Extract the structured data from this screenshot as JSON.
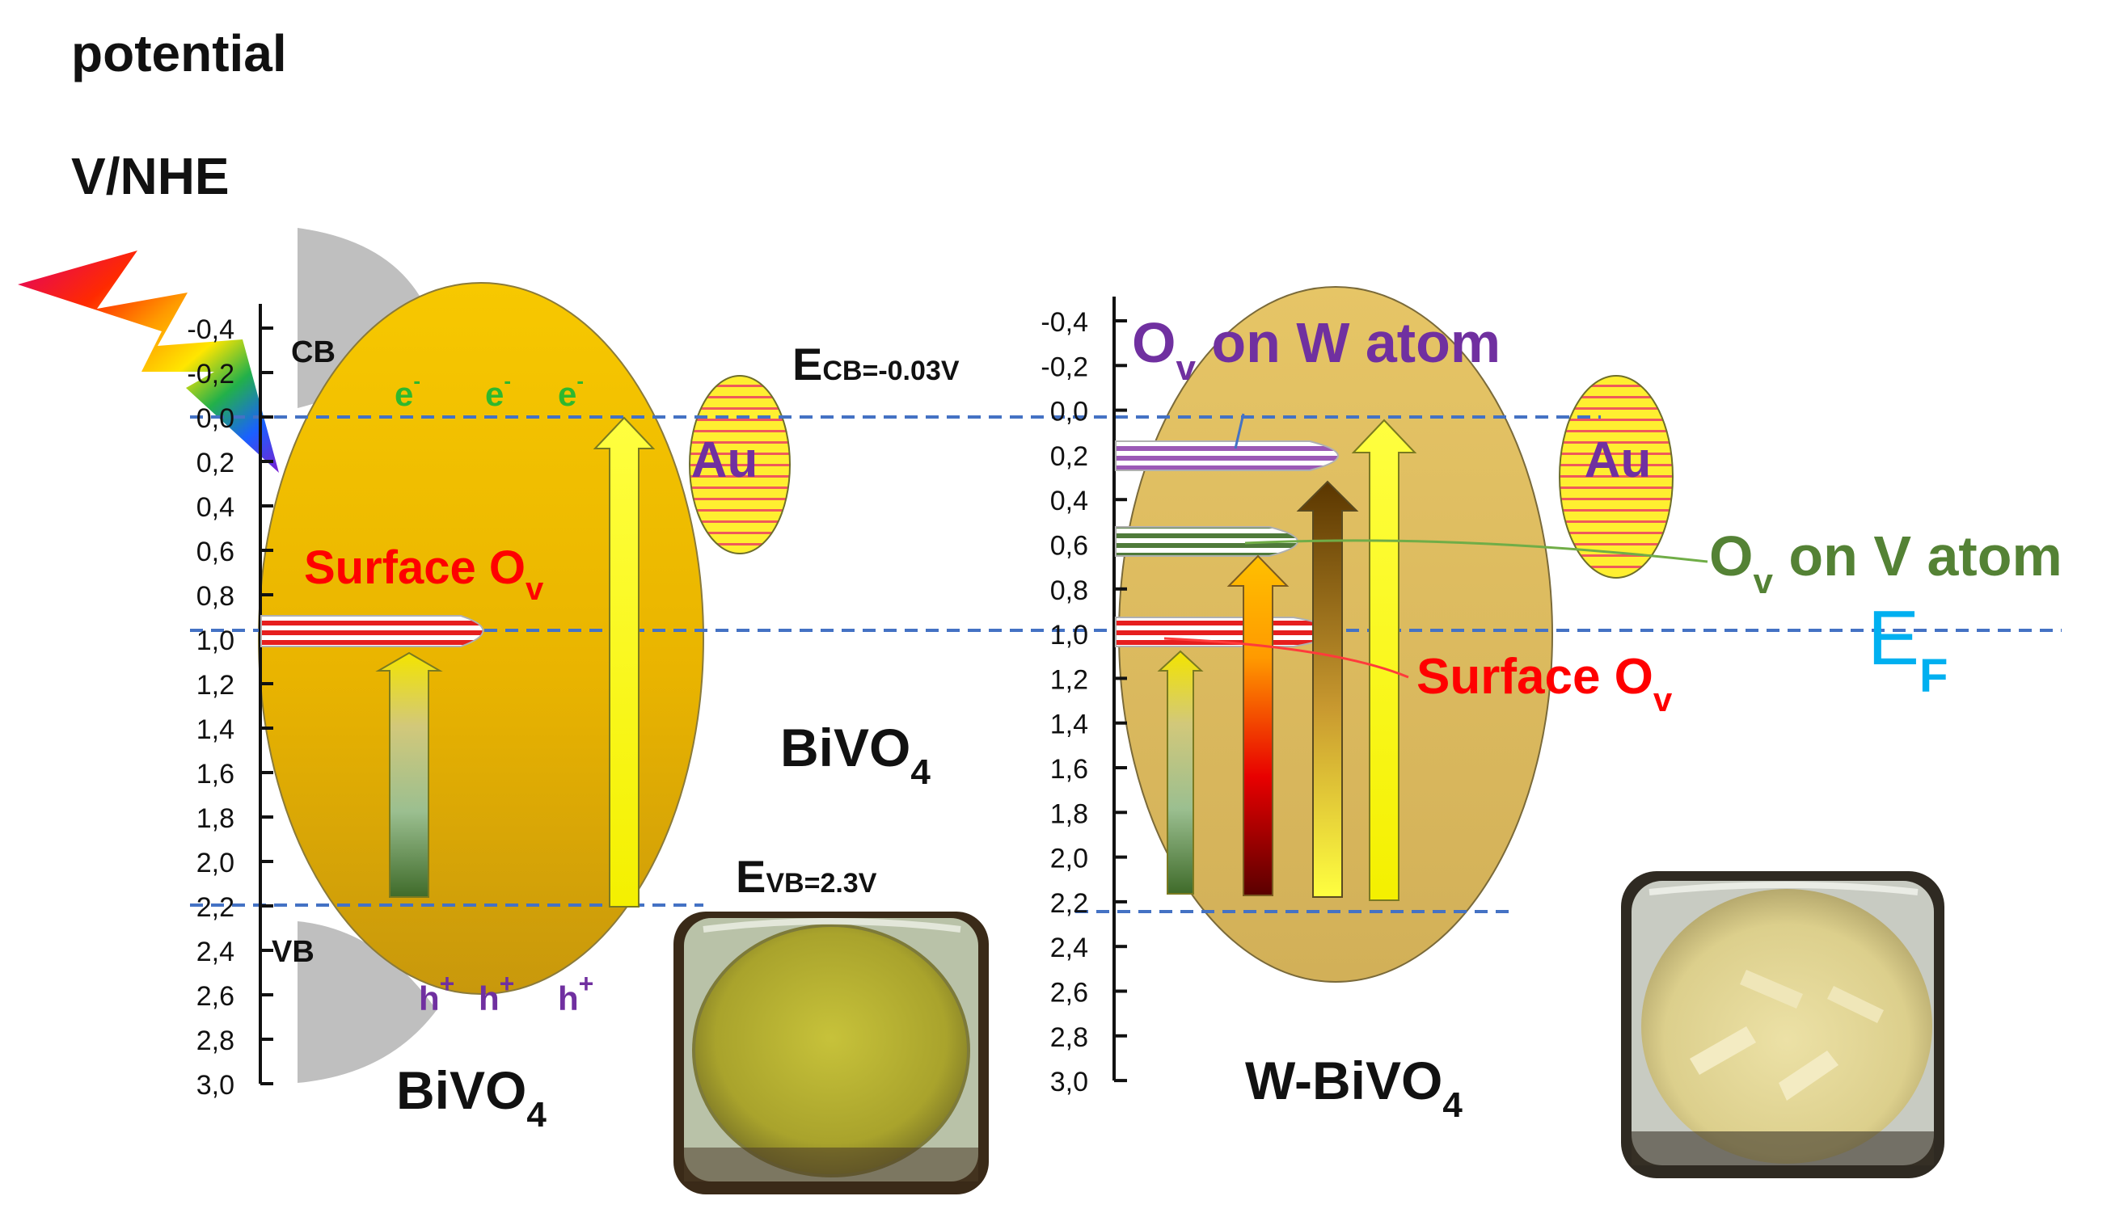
{
  "axis": {
    "title_line1": "potential",
    "title_line2": "V/NHE",
    "left_ticks": [
      "-0,4",
      "-0,2",
      "0,0",
      "0,2",
      "0,4",
      "0,6",
      "0,8",
      "1,0",
      "1,2",
      "1,4",
      "1,6",
      "1,8",
      "2,0",
      "2,2",
      "2,4",
      "2,6",
      "2,8",
      "3,0"
    ],
    "right_ticks": [
      "-0,4",
      "-0,2",
      "0,0",
      "0,2",
      "0,4",
      "0,6",
      "0,8",
      "1,0",
      "1,2",
      "1,4",
      "1,6",
      "1,8",
      "2,0",
      "2,2",
      "2,4",
      "2,6",
      "2,8",
      "3,0"
    ]
  },
  "left_panel": {
    "cb_label": "CB",
    "vb_label": "VB",
    "electron": "e",
    "electron_charge": "-",
    "hole": "h",
    "hole_charge": "+",
    "surface_ov_main": "Surface O",
    "surface_ov_sub": "v",
    "ecb_main": "E",
    "ecb_sub": "CB=-0.03V",
    "evb_main": "E",
    "evb_sub": "VB=2.3V",
    "au": "Au",
    "formula_mid_main": "BiVO",
    "formula_mid_sub": "4",
    "formula_bottom_main": "BiVO",
    "formula_bottom_sub": "4"
  },
  "right_panel": {
    "ov_w_main": "O",
    "ov_w_sub": "v",
    "ov_w_rest": " on W atom",
    "ov_v_main": "O",
    "ov_v_sub": "v",
    "ov_v_rest": " on V atom",
    "surface_ov_main": "Surface O",
    "surface_ov_sub": "v",
    "ef_main": "E",
    "ef_sub": "F",
    "au": "Au",
    "formula_main": "W-BiVO",
    "formula_sub": "4"
  },
  "colors": {
    "ellipse_left_top": "#f5c400",
    "ellipse_left_bottom": "#c89a0c",
    "ellipse_right": "#d8b860",
    "dash_line": "#4472c4",
    "surface_red": "#e60000",
    "ov_w_purple": "#7030a0",
    "ov_v_green": "#548235",
    "ef_blue": "#00b0f0",
    "au_purple": "#7030a0"
  }
}
